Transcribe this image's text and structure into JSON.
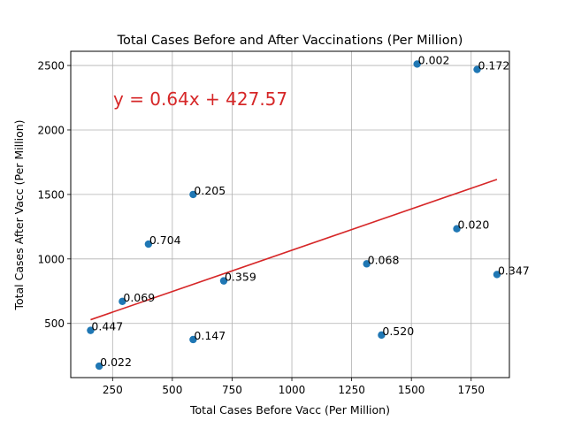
{
  "chart_data": {
    "type": "scatter",
    "title": "Total Cases Before and After Vaccinations (Per Million)",
    "xlabel": "Total Cases Before Vacc (Per Million)",
    "ylabel": "Total Cases After Vacc (Per Million)",
    "xlim": [
      75,
      1910
    ],
    "ylim": [
      80,
      2610
    ],
    "xticks": [
      250,
      500,
      750,
      1000,
      1250,
      1500,
      1750
    ],
    "yticks": [
      500,
      1000,
      1500,
      2000,
      2500
    ],
    "grid": true,
    "point_color": "#1f77b4",
    "points": [
      {
        "x": 1524,
        "y": 2511,
        "label": "0.002"
      },
      {
        "x": 1775,
        "y": 2469,
        "label": "0.172"
      },
      {
        "x": 587,
        "y": 1500,
        "label": "0.205"
      },
      {
        "x": 1690,
        "y": 1234,
        "label": "0.020"
      },
      {
        "x": 400,
        "y": 1115,
        "label": "0.704"
      },
      {
        "x": 1313,
        "y": 962,
        "label": "0.068"
      },
      {
        "x": 1858,
        "y": 879,
        "label": "0.347"
      },
      {
        "x": 715,
        "y": 830,
        "label": "0.359"
      },
      {
        "x": 291,
        "y": 671,
        "label": "0.069"
      },
      {
        "x": 158,
        "y": 446,
        "label": "0.447"
      },
      {
        "x": 1375,
        "y": 410,
        "label": "0.520"
      },
      {
        "x": 587,
        "y": 375,
        "label": "0.147"
      },
      {
        "x": 194,
        "y": 169,
        "label": "0.022"
      }
    ],
    "regression": {
      "equation": "y = 0.64x + 427.57",
      "slope": 0.64,
      "intercept": 427.57,
      "x_range": [
        158,
        1858
      ],
      "color": "#d62728"
    }
  }
}
